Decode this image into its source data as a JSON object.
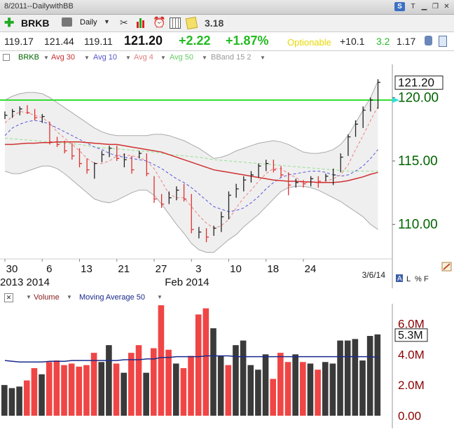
{
  "window": {
    "title": "8/2011--DailywithBB"
  },
  "toolbar": {
    "symbol": "BRKB",
    "period": "Daily",
    "value": "3.18"
  },
  "quote": {
    "values": [
      "119.17",
      "121.44",
      "119.11"
    ],
    "last": "121.20",
    "change": "+2.22",
    "change_pct": "+1.87%",
    "optionable": "Optionable",
    "v1": "+10.1",
    "v2": "3.2",
    "v3": "1.17"
  },
  "legend": [
    "BRKB",
    "Avg 30",
    "Avg 10",
    "Avg 4",
    "Avg 50",
    "BBand 15 2"
  ],
  "volume_legend": {
    "volume": "Volume",
    "ma": "Moving Average 50"
  },
  "colors": {
    "up": "#222222",
    "down": "#e03030",
    "avg30": "#d03030",
    "avg10": "#5555dd",
    "avg4": "#f08080",
    "avg50": "#90e090",
    "bband": "#aaaaaa",
    "level_line": "#33dd33",
    "price_label": "#006400",
    "vol_label": "#8b0000"
  },
  "chart_data": [
    {
      "type": "candlestick",
      "title": "BRKB",
      "ylim": [
        107.5,
        122.5
      ],
      "yticks": [
        "110.00",
        "115.00",
        "120.00"
      ],
      "last_price_label": "121.20",
      "horizontal_line": 119.8,
      "date_label": "3/6/14",
      "xtick_labels": [
        "30",
        "6",
        "13",
        "21",
        "27",
        "3",
        "10",
        "18",
        "24"
      ],
      "xtick_bars": [
        0,
        5,
        10,
        15,
        20,
        25,
        30,
        35,
        40
      ],
      "month_labels": [
        "2013 2014",
        "Feb 2014"
      ],
      "month_bars": [
        0,
        25
      ],
      "bars": [
        {
          "h": 118.9,
          "l": 118.3,
          "c": 118.6,
          "up": true
        },
        {
          "h": 119.1,
          "l": 118.4,
          "c": 118.9,
          "up": true
        },
        {
          "h": 119.3,
          "l": 118.6,
          "c": 119.1,
          "up": true
        },
        {
          "h": 119.4,
          "l": 118.7,
          "c": 118.8,
          "up": false
        },
        {
          "h": 119.1,
          "l": 118.2,
          "c": 118.4,
          "up": false
        },
        {
          "h": 118.7,
          "l": 118.0,
          "c": 118.5,
          "up": true
        },
        {
          "h": 118.1,
          "l": 116.3,
          "c": 116.5,
          "up": false
        },
        {
          "h": 116.9,
          "l": 116.1,
          "c": 116.3,
          "up": false
        },
        {
          "h": 116.6,
          "l": 115.6,
          "c": 115.8,
          "up": false
        },
        {
          "h": 116.4,
          "l": 115.1,
          "c": 115.4,
          "up": false
        },
        {
          "h": 116.0,
          "l": 114.5,
          "c": 114.8,
          "up": false
        },
        {
          "h": 115.2,
          "l": 114.0,
          "c": 114.3,
          "up": false
        },
        {
          "h": 114.9,
          "l": 113.6,
          "c": 114.8,
          "up": true
        },
        {
          "h": 115.8,
          "l": 114.9,
          "c": 115.5,
          "up": true
        },
        {
          "h": 116.2,
          "l": 115.3,
          "c": 116.0,
          "up": true
        },
        {
          "h": 116.2,
          "l": 115.0,
          "c": 115.2,
          "up": false
        },
        {
          "h": 115.6,
          "l": 114.5,
          "c": 115.1,
          "up": true
        },
        {
          "h": 115.4,
          "l": 114.0,
          "c": 114.3,
          "up": false
        },
        {
          "h": 115.8,
          "l": 115.2,
          "c": 115.6,
          "up": true
        },
        {
          "h": 115.6,
          "l": 113.8,
          "c": 114.0,
          "up": false
        },
        {
          "h": 113.8,
          "l": 111.7,
          "c": 112.0,
          "up": false
        },
        {
          "h": 112.4,
          "l": 111.3,
          "c": 111.6,
          "up": false
        },
        {
          "h": 112.6,
          "l": 111.6,
          "c": 112.1,
          "up": true
        },
        {
          "h": 113.0,
          "l": 111.9,
          "c": 112.7,
          "up": true
        },
        {
          "h": 113.2,
          "l": 111.8,
          "c": 112.0,
          "up": false
        },
        {
          "h": 112.4,
          "l": 109.3,
          "c": 109.6,
          "up": false
        },
        {
          "h": 109.8,
          "l": 108.9,
          "c": 109.4,
          "up": true
        },
        {
          "h": 109.7,
          "l": 108.6,
          "c": 109.0,
          "up": false
        },
        {
          "h": 109.9,
          "l": 109.1,
          "c": 109.7,
          "up": true
        },
        {
          "h": 111.0,
          "l": 109.4,
          "c": 110.6,
          "up": true
        },
        {
          "h": 112.6,
          "l": 110.4,
          "c": 112.3,
          "up": true
        },
        {
          "h": 113.2,
          "l": 112.1,
          "c": 112.8,
          "up": true
        },
        {
          "h": 113.8,
          "l": 112.6,
          "c": 113.5,
          "up": true
        },
        {
          "h": 114.2,
          "l": 113.3,
          "c": 113.9,
          "up": true
        },
        {
          "h": 114.8,
          "l": 113.7,
          "c": 114.6,
          "up": true
        },
        {
          "h": 115.1,
          "l": 114.2,
          "c": 114.8,
          "up": true
        },
        {
          "h": 115.1,
          "l": 114.1,
          "c": 114.3,
          "up": false
        },
        {
          "h": 114.6,
          "l": 113.7,
          "c": 113.9,
          "up": false
        },
        {
          "h": 114.1,
          "l": 112.3,
          "c": 113.1,
          "up": false
        },
        {
          "h": 113.6,
          "l": 112.9,
          "c": 113.3,
          "up": true
        },
        {
          "h": 113.5,
          "l": 112.9,
          "c": 113.2,
          "up": false
        },
        {
          "h": 113.8,
          "l": 113.0,
          "c": 113.6,
          "up": true
        },
        {
          "h": 113.8,
          "l": 112.9,
          "c": 113.4,
          "up": false
        },
        {
          "h": 114.0,
          "l": 113.4,
          "c": 113.8,
          "up": true
        },
        {
          "h": 114.4,
          "l": 113.1,
          "c": 113.9,
          "up": true
        },
        {
          "h": 115.6,
          "l": 114.1,
          "c": 115.3,
          "up": true
        },
        {
          "h": 117.1,
          "l": 115.4,
          "c": 116.9,
          "up": true
        },
        {
          "h": 118.2,
          "l": 116.9,
          "c": 117.9,
          "up": true
        },
        {
          "h": 119.3,
          "l": 117.6,
          "c": 119.0,
          "up": true
        },
        {
          "h": 120.0,
          "l": 118.9,
          "c": 119.8,
          "up": true
        },
        {
          "h": 121.44,
          "l": 119.11,
          "c": 121.2,
          "up": true
        }
      ],
      "series": [
        {
          "name": "Avg 30",
          "values": [
            116.3,
            116.3,
            116.35,
            116.4,
            116.4,
            116.45,
            116.45,
            116.5,
            116.5,
            116.5,
            116.5,
            116.45,
            116.4,
            116.35,
            116.3,
            116.3,
            116.2,
            116.1,
            116.0,
            115.9,
            115.8,
            115.7,
            115.5,
            115.3,
            115.1,
            114.9,
            114.7,
            114.5,
            114.3,
            114.2,
            114.1,
            114.0,
            113.9,
            113.8,
            113.7,
            113.6,
            113.5,
            113.45,
            113.4,
            113.4,
            113.35,
            113.35,
            113.3,
            113.3,
            113.3,
            113.35,
            113.45,
            113.6,
            113.75,
            113.95,
            114.1
          ]
        },
        {
          "name": "Avg 10",
          "values": [
            117.0,
            117.6,
            117.9,
            118.1,
            118.2,
            118.1,
            117.9,
            117.6,
            117.3,
            117.0,
            116.7,
            116.4,
            116.1,
            115.9,
            115.6,
            115.4,
            115.3,
            115.2,
            115.1,
            115.0,
            114.7,
            114.4,
            114.0,
            113.6,
            113.3,
            112.9,
            112.4,
            111.9,
            111.4,
            111.2,
            111.0,
            111.1,
            111.3,
            111.7,
            112.2,
            112.8,
            113.3,
            113.7,
            113.9,
            114.0,
            114.1,
            114.2,
            114.2,
            114.1,
            113.9,
            113.8,
            113.9,
            114.2,
            114.6,
            115.2,
            115.9
          ]
        },
        {
          "name": "Avg 4",
          "values": [
            118.0,
            118.5,
            118.9,
            118.8,
            118.6,
            118.4,
            118.0,
            117.3,
            116.8,
            116.3,
            115.8,
            115.2,
            114.8,
            114.8,
            115.0,
            115.4,
            115.5,
            115.4,
            115.3,
            115.0,
            114.4,
            113.4,
            112.4,
            112.1,
            112.1,
            111.4,
            110.7,
            110.1,
            109.7,
            109.9,
            110.4,
            111.3,
            112.1,
            112.7,
            113.4,
            114.0,
            114.4,
            114.4,
            114.0,
            113.7,
            113.3,
            113.3,
            113.3,
            113.4,
            113.6,
            113.9,
            114.7,
            115.9,
            117.0,
            118.2,
            119.3
          ]
        },
        {
          "name": "Avg 50",
          "values": [
            116.8,
            116.75,
            116.7,
            116.65,
            116.6,
            116.55,
            116.5,
            116.45,
            116.4,
            116.35,
            116.3,
            116.2,
            116.1,
            116.05,
            116.0,
            115.95,
            115.9,
            115.85,
            115.8,
            115.75,
            115.7,
            115.6,
            115.5,
            115.45,
            115.4,
            115.35,
            115.3,
            115.2,
            115.1,
            115.05,
            115.0,
            114.95,
            114.9,
            114.85,
            114.8,
            114.75,
            114.7,
            114.65,
            114.6,
            114.55,
            114.5,
            114.45,
            114.4,
            114.35,
            114.3,
            114.25,
            114.2,
            114.2,
            114.2,
            114.2,
            114.2
          ]
        },
        {
          "name": "BBand upper",
          "values": [
            119.8,
            120.1,
            120.3,
            120.4,
            120.4,
            120.3,
            120.0,
            119.6,
            119.2,
            118.8,
            118.4,
            118.0,
            117.6,
            117.3,
            117.1,
            117.0,
            117.0,
            117.0,
            117.0,
            117.0,
            117.1,
            117.1,
            117.0,
            116.8,
            116.6,
            116.3,
            116.0,
            115.6,
            115.2,
            115.3,
            115.5,
            115.8,
            116.0,
            116.2,
            116.4,
            116.5,
            116.6,
            116.5,
            116.3,
            116.0,
            115.7,
            115.6,
            115.6,
            115.7,
            115.9,
            116.3,
            117.0,
            118.0,
            119.0,
            120.0,
            121.3
          ]
        },
        {
          "name": "BBand lower",
          "values": [
            114.2,
            114.0,
            114.0,
            114.2,
            114.4,
            114.6,
            114.6,
            114.4,
            114.0,
            113.5,
            113.0,
            112.5,
            112.0,
            111.8,
            111.7,
            111.9,
            112.2,
            112.5,
            112.7,
            112.7,
            112.3,
            111.6,
            110.8,
            110.0,
            109.3,
            108.5,
            108.0,
            107.8,
            107.8,
            108.3,
            108.8,
            109.2,
            109.8,
            110.3,
            110.8,
            111.4,
            112.0,
            112.6,
            112.9,
            113.0,
            113.0,
            112.9,
            112.7,
            112.4,
            112.1,
            111.8,
            111.4,
            111.0,
            110.6,
            110.0,
            109.6
          ]
        }
      ]
    },
    {
      "type": "bar",
      "title": "Volume",
      "ylim": [
        0,
        7.3
      ],
      "yticks": [
        "0.00",
        "2.0M",
        "4.0M",
        "6.0M"
      ],
      "last_value_label": "5.3M",
      "values": [
        2.0,
        1.8,
        1.9,
        2.3,
        3.1,
        2.7,
        3.5,
        3.6,
        3.3,
        3.4,
        3.2,
        3.3,
        4.1,
        3.5,
        4.6,
        3.4,
        2.8,
        4.1,
        4.6,
        2.8,
        4.4,
        7.2,
        4.3,
        3.4,
        3.1,
        3.9,
        6.6,
        7.0,
        5.7,
        3.9,
        3.3,
        4.6,
        4.9,
        3.3,
        3.0,
        4.0,
        2.4,
        4.1,
        3.5,
        4.0,
        3.5,
        3.4,
        3.0,
        3.5,
        3.4,
        4.9,
        4.9,
        5.0,
        3.6,
        5.2,
        5.3
      ],
      "up": [
        true,
        true,
        true,
        false,
        false,
        true,
        false,
        false,
        false,
        false,
        false,
        false,
        false,
        true,
        true,
        false,
        true,
        false,
        false,
        true,
        false,
        false,
        false,
        true,
        false,
        false,
        false,
        false,
        true,
        true,
        false,
        true,
        true,
        true,
        true,
        true,
        false,
        false,
        false,
        true,
        false,
        true,
        false,
        true,
        true,
        true,
        true,
        true,
        true,
        true,
        true
      ],
      "series": [
        {
          "name": "Moving Average 50",
          "values": [
            3.6,
            3.55,
            3.5,
            3.5,
            3.5,
            3.5,
            3.55,
            3.55,
            3.55,
            3.6,
            3.6,
            3.6,
            3.6,
            3.6,
            3.6,
            3.6,
            3.65,
            3.65,
            3.65,
            3.7,
            3.7,
            3.8,
            3.8,
            3.85,
            3.85,
            3.85,
            3.85,
            3.9,
            3.9,
            3.9,
            3.9,
            3.85,
            3.85,
            3.85,
            3.85,
            3.85,
            3.85,
            3.85,
            3.85,
            3.85,
            3.85,
            3.85,
            3.85,
            3.85,
            3.85,
            3.85,
            3.85,
            3.85,
            3.85,
            3.85,
            3.8
          ]
        }
      ]
    }
  ]
}
